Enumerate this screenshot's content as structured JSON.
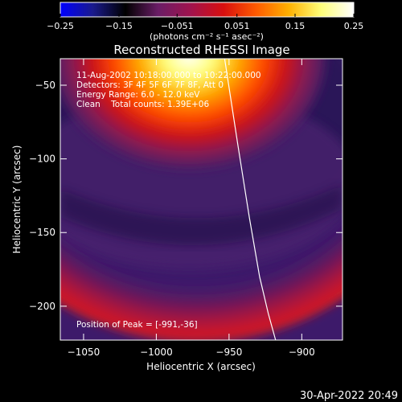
{
  "colorbar": {
    "stops": [
      "#0000ff",
      "#1a1a8c",
      "#000000",
      "#6a1d66",
      "#a0134e",
      "#d80f0f",
      "#ff5a00",
      "#ffb000",
      "#ffff7a",
      "#ffffff"
    ],
    "ticks": [
      "-0.25",
      "-0.15",
      "-0.051",
      "0.051",
      "0.15",
      "0.25"
    ],
    "units_label": "(photons cm⁻² s⁻¹ asec⁻²)"
  },
  "chart_data": {
    "type": "heatmap",
    "title": "Reconstructed RHESSI Image",
    "xlabel": "Heliocentric X (arcsec)",
    "ylabel": "Heliocentric Y (arcsec)",
    "xlim": [
      -1066,
      -872
    ],
    "ylim": [
      -223,
      -32
    ],
    "x_ticks": [
      -1050,
      -1000,
      -950,
      -900
    ],
    "y_ticks": [
      -50,
      -100,
      -150,
      -200
    ],
    "x_tick_labels": [
      "−1050",
      "−1000",
      "−950",
      "−900"
    ],
    "y_tick_labels": [
      "−50",
      "−100",
      "−150",
      "−200"
    ],
    "color_range": [
      -0.25,
      0.25
    ],
    "annotations": [
      "11-Aug-2002 10:18:00.000 to 10:22:00.000",
      "Detectors: 3F 4F 5F 6F 7F 8F, Att 0",
      "Energy Range: 6.0 - 12.0 keV",
      "Clean    Total counts: 1.39E+06"
    ],
    "peak_label": "Position of Peak = [-991,-36]",
    "peak": [
      -991,
      -36
    ],
    "limb_curve": {
      "x": [
        -953,
        -944,
        -936,
        -929,
        -923,
        -918
      ],
      "y": [
        -32,
        -90,
        -140,
        -180,
        -205,
        -223
      ]
    }
  },
  "timestamp": "30-Apr-2022 20:49"
}
